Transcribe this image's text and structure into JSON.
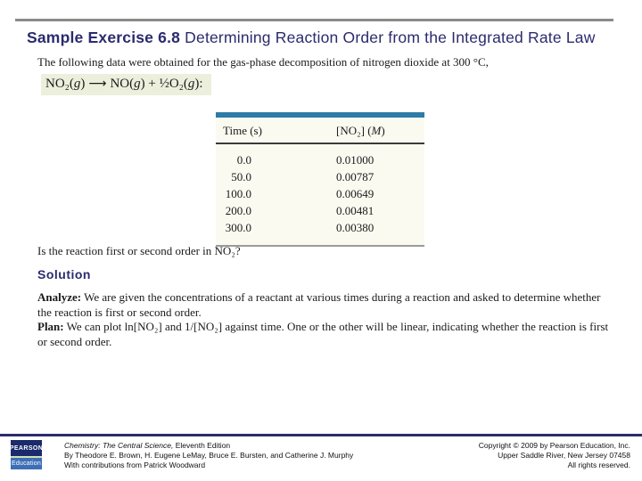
{
  "title": {
    "bold": "Sample Exercise 6.8",
    "rest": " Determining Reaction Order from the Integrated Rate Law"
  },
  "intro": "The following data were obtained for the gas-phase decomposition of nitrogen dioxide at 300 °C,",
  "equation": {
    "parts": [
      "NO₂(",
      "g",
      ")",
      "⟶",
      "NO(",
      "g",
      ") + ½O₂(",
      "g",
      "):"
    ]
  },
  "table": {
    "header_time": "Time (s)",
    "header_conc_pre": "[NO₂] (",
    "header_conc_unit": "M",
    "header_conc_post": ")",
    "rows": [
      {
        "time": "0.0",
        "conc": "0.01000"
      },
      {
        "time": "50.0",
        "conc": "0.00787"
      },
      {
        "time": "100.0",
        "conc": "0.00649"
      },
      {
        "time": "200.0",
        "conc": "0.00481"
      },
      {
        "time": "300.0",
        "conc": "0.00380"
      }
    ]
  },
  "question": "Is the reaction first or second order in NO₂?",
  "solution": {
    "heading": "Solution",
    "analyze_label": "Analyze:",
    "analyze_text": " We are given the concentrations of a reactant at various times during a reaction and asked to determine whether the reaction is first or second order.",
    "plan_label": "Plan:",
    "plan_text": " We can plot ln[NO₂] and 1/[NO₂] against time. One or the other will be linear, indicating whether the reaction is first or second order."
  },
  "footer": {
    "logo_top": "PEARSON",
    "logo_bottom": "Education",
    "book_title_italic": "Chemistry: The Central Science,",
    "book_title_rest": " Eleventh Edition",
    "authors": "By Theodore E. Brown, H. Eugene LeMay, Bruce E. Bursten, and Catherine J. Murphy",
    "contributions": "With contributions from Patrick Woodward",
    "copyright_line1": "Copyright © 2009 by Pearson Education, Inc.",
    "copyright_line2": "Upper Saddle River, New Jersey 07458",
    "copyright_line3": "All rights reserved."
  },
  "colors": {
    "title_navy": "#2b2b6e",
    "top_rule_gray": "#8a8a8a",
    "table_bar_blue": "#2d7ca7",
    "table_background": "#fbfaf1",
    "equation_highlight": "#edefdd",
    "logo_navy": "#1a2a6c",
    "logo_blue": "#3e6fb6"
  }
}
